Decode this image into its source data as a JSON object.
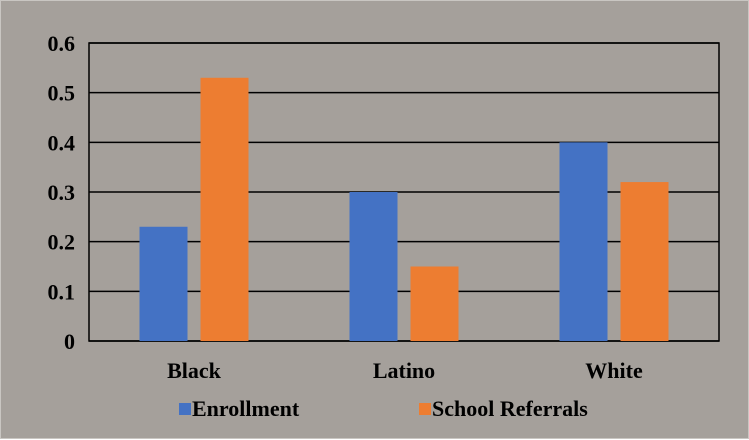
{
  "chart_data": {
    "type": "bar",
    "title": "",
    "xlabel": "",
    "ylabel": "",
    "categories": [
      "Black",
      "Latino",
      "White"
    ],
    "series": [
      {
        "name": "Enrollment",
        "values": [
          0.23,
          0.3,
          0.4
        ],
        "color": "#4472c4"
      },
      {
        "name": "School Referrals",
        "values": [
          0.53,
          0.15,
          0.32
        ],
        "color": "#ed7d31"
      }
    ],
    "ylim": [
      0,
      0.6
    ],
    "yticks": [
      "0",
      "0.1",
      "0.2",
      "0.3",
      "0.4",
      "0.5",
      "0.6"
    ],
    "grid": true,
    "legend_position": "bottom",
    "background": "#a5a09b"
  }
}
